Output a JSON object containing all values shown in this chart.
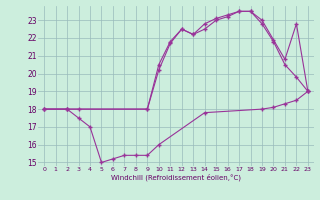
{
  "xlabel": "Windchill (Refroidissement éolien,°C)",
  "bg_color": "#cceedd",
  "grid_color": "#99bbbb",
  "line_color": "#993399",
  "xlim": [
    -0.5,
    23.5
  ],
  "ylim": [
    14.8,
    23.8
  ],
  "yticks": [
    15,
    16,
    17,
    18,
    19,
    20,
    21,
    22,
    23
  ],
  "xticks": [
    0,
    1,
    2,
    3,
    4,
    5,
    6,
    7,
    8,
    9,
    10,
    11,
    12,
    13,
    14,
    15,
    16,
    17,
    18,
    19,
    20,
    21,
    22,
    23
  ],
  "series1_x": [
    0,
    2,
    3,
    4,
    5,
    6,
    7,
    8,
    9,
    10,
    14,
    19,
    20,
    21,
    22,
    23
  ],
  "series1_y": [
    18.0,
    18.0,
    17.5,
    17.0,
    15.0,
    15.2,
    15.4,
    15.4,
    15.4,
    16.0,
    17.8,
    18.0,
    18.1,
    18.3,
    18.5,
    19.0
  ],
  "series2_x": [
    0,
    2,
    3,
    9,
    10,
    11,
    12,
    13,
    14,
    15,
    16,
    17,
    18,
    19,
    20,
    21,
    22,
    23
  ],
  "series2_y": [
    18.0,
    18.0,
    18.0,
    18.0,
    20.2,
    21.7,
    22.5,
    22.2,
    22.8,
    23.1,
    23.3,
    23.5,
    23.5,
    22.8,
    21.8,
    20.5,
    19.8,
    19.0
  ],
  "series3_x": [
    0,
    2,
    9,
    10,
    11,
    12,
    13,
    14,
    15,
    16,
    17,
    18,
    19,
    20,
    21,
    22,
    23
  ],
  "series3_y": [
    18.0,
    18.0,
    18.0,
    20.5,
    21.8,
    22.5,
    22.2,
    22.5,
    23.0,
    23.2,
    23.5,
    23.5,
    23.0,
    21.9,
    20.8,
    22.8,
    19.0
  ]
}
